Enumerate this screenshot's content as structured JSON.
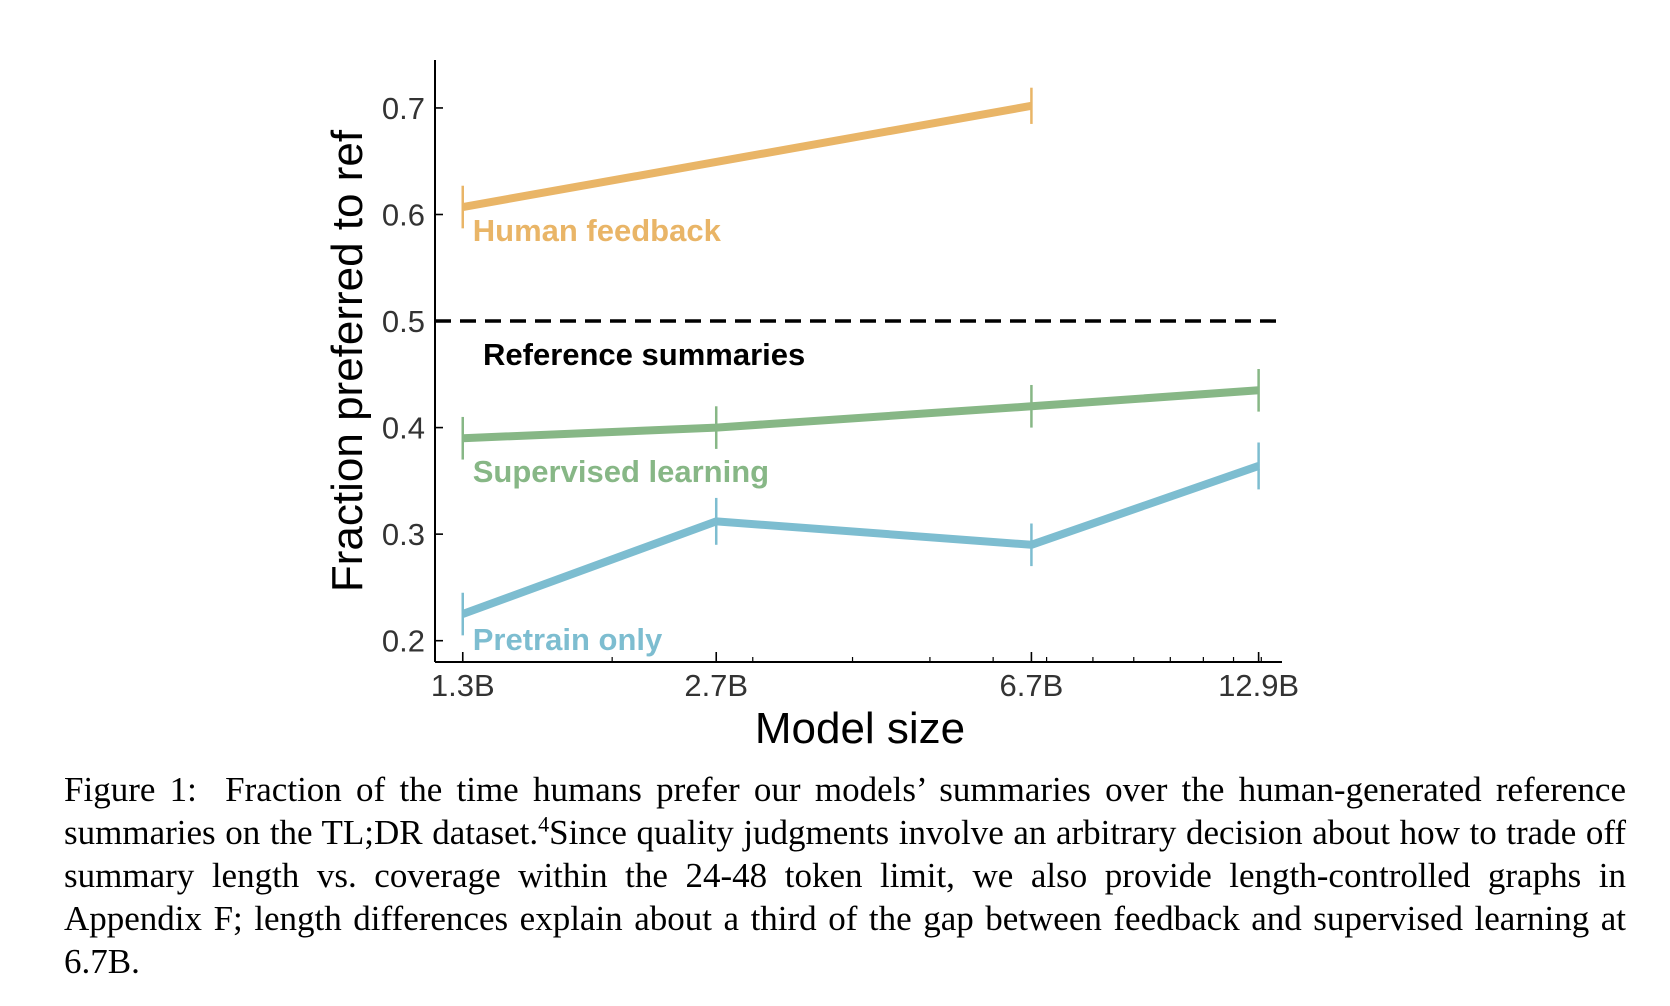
{
  "chart_data": {
    "type": "line",
    "xlabel": "Model size",
    "ylabel": "Fraction preferred to ref",
    "x_scale": "log",
    "categories": [
      "1.3B",
      "2.7B",
      "6.7B",
      "12.9B"
    ],
    "x": [
      1.3,
      2.7,
      6.7,
      12.9
    ],
    "xlim": [
      1.2,
      13.8
    ],
    "ylim": [
      0.18,
      0.745
    ],
    "yticks": [
      0.2,
      0.3,
      0.4,
      0.5,
      0.6,
      0.7
    ],
    "ytick_labels": [
      "0.2",
      "0.3",
      "0.4",
      "0.5",
      "0.6",
      "0.7"
    ],
    "grid": false,
    "reference_line": {
      "y": 0.5,
      "label": "Reference summaries",
      "style": "dashed",
      "color": "#000000"
    },
    "series": [
      {
        "name": "Human feedback",
        "color": "#E9B567",
        "x": [
          1.3,
          6.7
        ],
        "values": [
          0.607,
          0.702
        ],
        "errors": [
          0.02,
          0.017
        ]
      },
      {
        "name": "Supervised learning",
        "color": "#87B786",
        "x": [
          1.3,
          2.7,
          6.7,
          12.9
        ],
        "values": [
          0.39,
          0.4,
          0.42,
          0.435
        ],
        "errors": [
          0.02,
          0.02,
          0.02,
          0.02
        ]
      },
      {
        "name": "Pretrain only",
        "color": "#7DBDD0",
        "x": [
          1.3,
          2.7,
          6.7,
          12.9
        ],
        "values": [
          0.225,
          0.312,
          0.29,
          0.364
        ],
        "errors": [
          0.02,
          0.022,
          0.02,
          0.022
        ]
      }
    ]
  },
  "caption": {
    "label": "Figure 1:",
    "text_before_sup": "Fraction of the time humans prefer our models’ summaries over the human-generated reference summaries on the TL;DR dataset.",
    "superscript": "4",
    "text_after_sup": "Since quality judgments involve an arbitrary decision about how to trade off summary length vs. coverage within the 24-48 token limit, we also provide length-controlled graphs in Appendix F; length differences explain about a third of the gap between feedback and supervised learning at 6.7B."
  }
}
